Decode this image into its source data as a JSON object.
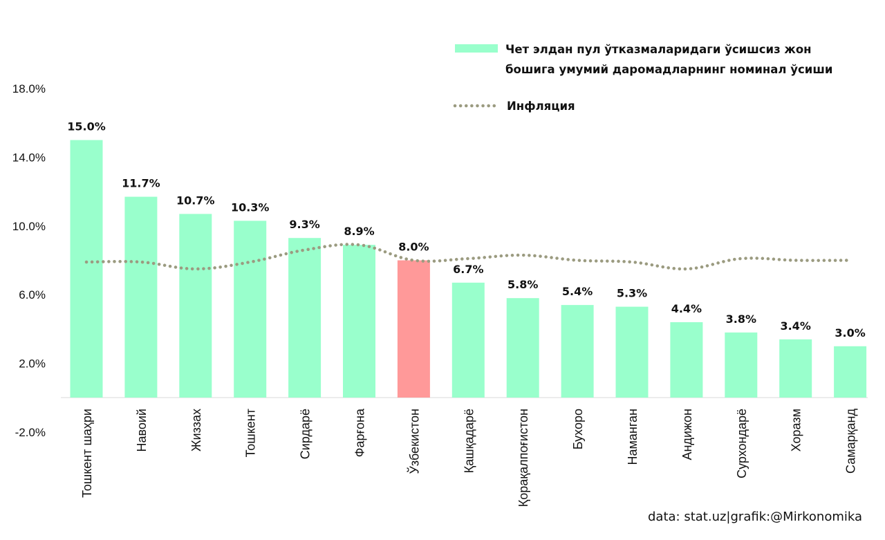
{
  "chart_data": {
    "type": "bar",
    "title": "",
    "xlabel": "",
    "ylabel": "",
    "ylim": [
      -2.0,
      18.0
    ],
    "yticks": [
      "18.0%",
      "14.0%",
      "10.0%",
      "6.0%",
      "2.0%",
      "-2.0%"
    ],
    "ytick_values": [
      18,
      14,
      10,
      6,
      2,
      -2
    ],
    "categories": [
      "Тошкент шаҳри",
      "Навоий",
      "Жиззах",
      "Тошкент",
      "Сирдарё",
      "Фарғона",
      "Ўзбекистон",
      "Қашқадарё",
      "Қорақалпоғистон",
      "Бухоро",
      "Наманган",
      "Андижон",
      "Сурхондарё",
      "Хоразм",
      "Самарқанд"
    ],
    "series": [
      {
        "name": "Чет элдан пул ўтказмаларидаги ўсишсиз жон бошига умумий даромадларнинг  номинал ўсиши",
        "legend_lines": [
          "Чет элдан пул ўтказмаларидаги ўсишсиз жон",
          "бошига умумий даромадларнинг  номинал ўсиши"
        ],
        "type": "bar",
        "color": "#99ffcc",
        "highlight_color": "#ff9999",
        "highlight_category": "Ўзбекистон",
        "values": [
          15.0,
          11.7,
          10.7,
          10.3,
          9.3,
          8.9,
          8.0,
          6.7,
          5.8,
          5.4,
          5.3,
          4.4,
          3.8,
          3.4,
          3.0
        ],
        "labels": [
          "15.0%",
          "11.7%",
          "10.7%",
          "10.3%",
          "9.3%",
          "8.9%",
          "8.0%",
          "6.7%",
          "5.8%",
          "5.4%",
          "5.3%",
          "4.4%",
          "3.8%",
          "3.4%",
          "3.0%"
        ]
      },
      {
        "name": "Инфляция",
        "type": "line",
        "style": "dotted",
        "color": "#9b9b80",
        "values": [
          7.9,
          7.9,
          7.5,
          7.9,
          8.6,
          8.9,
          8.0,
          8.1,
          8.3,
          8.0,
          7.9,
          7.5,
          8.1,
          8.0,
          8.0
        ]
      }
    ],
    "legend_position": "top-right",
    "source_note": "data: stat.uz|grafik:@Mirkonomika"
  }
}
